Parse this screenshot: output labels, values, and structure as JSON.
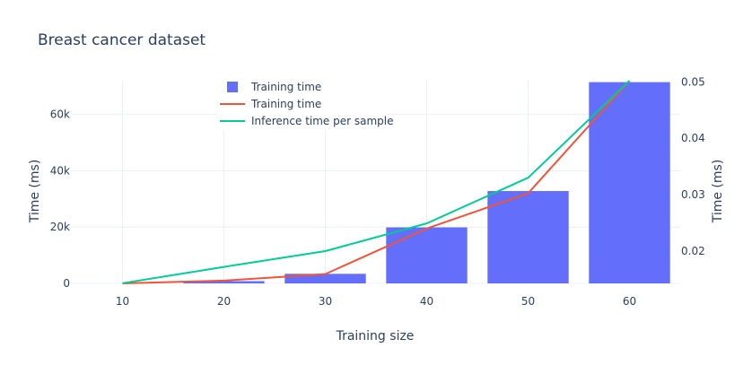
{
  "chart_data": {
    "type": "bar",
    "title": "Breast cancer dataset",
    "xlabel": "Training size",
    "ylabel_left": "Time (ms)",
    "ylabel_right": "Time (ms)",
    "x": [
      10,
      20,
      30,
      40,
      50,
      60
    ],
    "x_ticks": [
      "10",
      "20",
      "30",
      "40",
      "50",
      "60"
    ],
    "xlim": [
      5,
      65
    ],
    "ylim_left": [
      0,
      72000
    ],
    "ylim_right": [
      0.01427,
      0.0502
    ],
    "y_left_ticks": [
      0,
      20000,
      40000,
      60000
    ],
    "y_left_tick_labels": [
      "0",
      "20k",
      "40k",
      "60k"
    ],
    "y_right_ticks": [
      0.02,
      0.03,
      0.04,
      0.05
    ],
    "y_right_tick_labels": [
      "0.02",
      "0.03",
      "0.04",
      "0.05"
    ],
    "grid": true,
    "legend_position": "top-left",
    "series": [
      {
        "name": "Training time",
        "kind": "bar",
        "axis": "left",
        "color": "#636efa",
        "values": [
          0,
          800,
          3400,
          19900,
          32800,
          71500
        ]
      },
      {
        "name": "Training time",
        "kind": "line",
        "axis": "left",
        "color": "#ef553b",
        "values": [
          0,
          1000,
          3300,
          19500,
          32000,
          72000
        ]
      },
      {
        "name": "Inference time per sample",
        "kind": "line",
        "axis": "right",
        "color": "#00cc96",
        "values": [
          0.0143,
          0.0172,
          0.02,
          0.0249,
          0.033,
          0.0502
        ]
      }
    ]
  }
}
